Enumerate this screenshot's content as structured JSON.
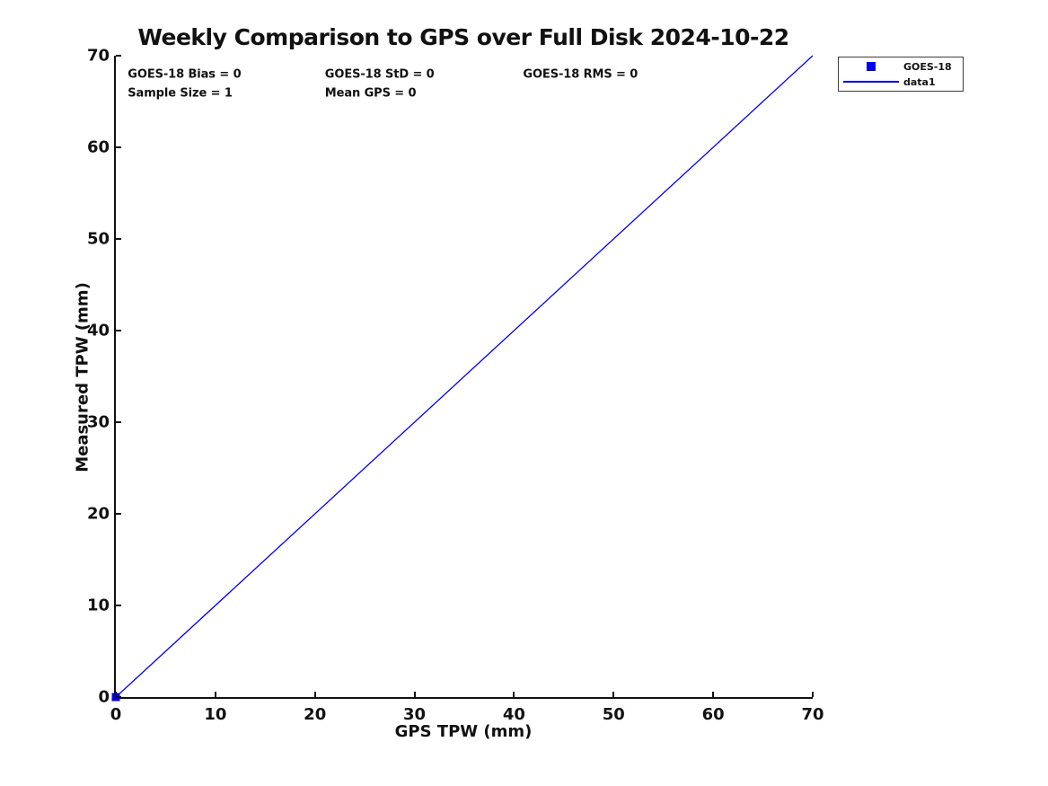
{
  "figure_title": "Weekly Comparison to GPS over Full Disk 2024-10-22",
  "colors": {
    "series_blue": "#0000EE",
    "axis": "#111111",
    "background": "#ffffff"
  },
  "chart_data": {
    "type": "scatter",
    "title": "Weekly Comparison to GPS over Full Disk 2024-10-22",
    "xlabel": "GPS TPW (mm)",
    "ylabel": "Measured TPW (mm)",
    "xlim": [
      0,
      70
    ],
    "ylim": [
      0,
      70
    ],
    "xticks": [
      0,
      10,
      20,
      30,
      40,
      50,
      60,
      70
    ],
    "yticks": [
      0,
      10,
      20,
      30,
      40,
      50,
      60,
      70
    ],
    "grid": false,
    "legend_position": "outside-top-right",
    "series": [
      {
        "name": "GOES-18",
        "type": "scatter",
        "marker": "filled-square",
        "color": "#0000EE",
        "points": [
          [
            0,
            0
          ]
        ]
      },
      {
        "name": "data1",
        "type": "line",
        "color": "#0000EE",
        "points": [
          [
            0,
            0
          ],
          [
            70,
            70
          ]
        ]
      }
    ],
    "stats": {
      "goes18_bias": 0,
      "goes18_std": 0,
      "goes18_rms": 0,
      "sample_size": 1,
      "mean_gps": 0
    },
    "annotations": [
      {
        "text": "GOES-18 Bias = 0",
        "x": 1.2,
        "y": 67.9
      },
      {
        "text": "GOES-18 StD = 0",
        "x": 21.0,
        "y": 67.9
      },
      {
        "text": "GOES-18 RMS = 0",
        "x": 40.9,
        "y": 67.9
      },
      {
        "text": "Sample Size = 1",
        "x": 1.2,
        "y": 65.9
      },
      {
        "text": "Mean GPS = 0",
        "x": 21.0,
        "y": 65.9
      }
    ],
    "legend": {
      "entries": [
        {
          "label": "GOES-18",
          "glyph": "square-marker"
        },
        {
          "label": "data1",
          "glyph": "line"
        }
      ]
    }
  }
}
